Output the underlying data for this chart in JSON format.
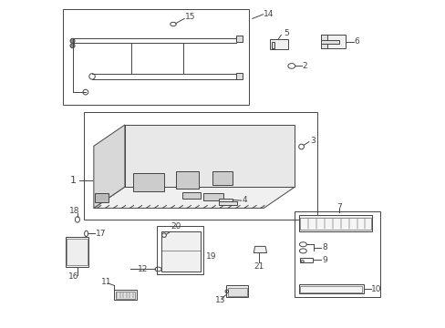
{
  "bg_color": "#ffffff",
  "line_color": "#444444",
  "lw": 0.7,
  "fig_width": 4.89,
  "fig_height": 3.6
}
